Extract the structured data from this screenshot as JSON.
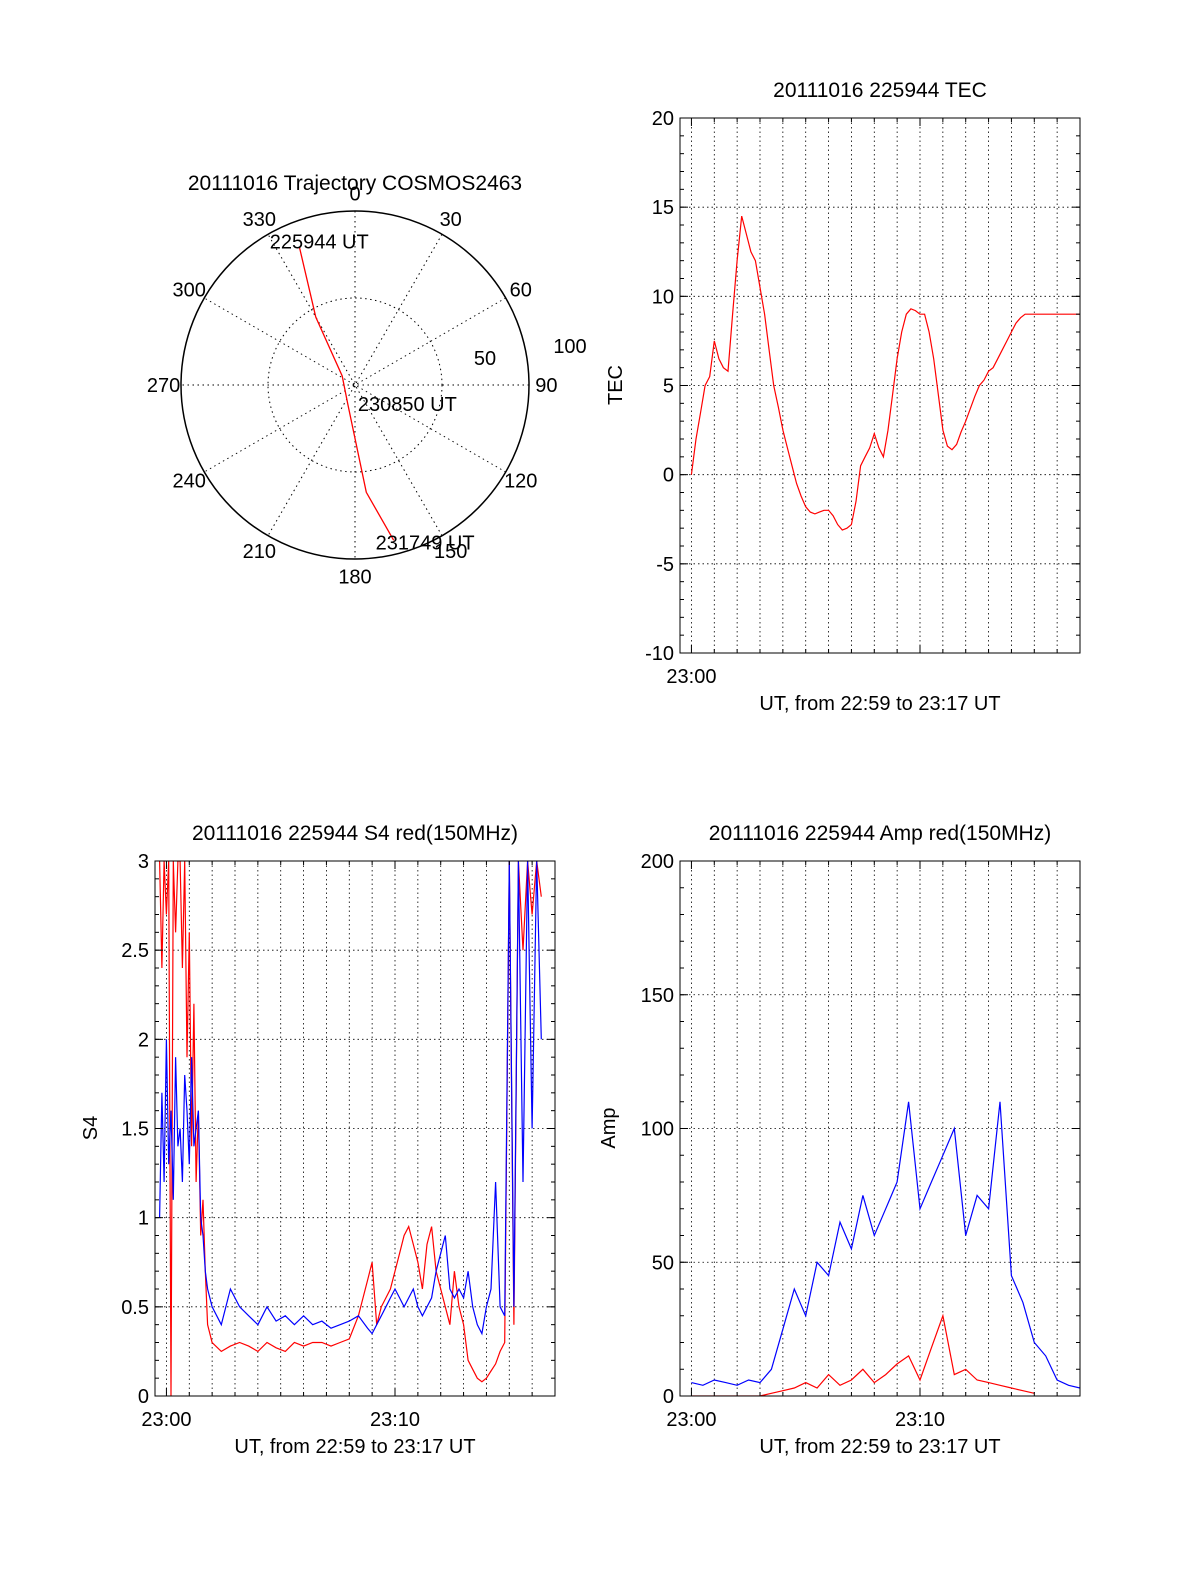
{
  "colors": {
    "red": "#ff0000",
    "blue": "#0000ff",
    "axis": "#000000",
    "grid": "#000000"
  },
  "chart_data": [
    {
      "type": "polar",
      "title": "20111016 Trajectory COSMOS2463",
      "angle_ticks": [
        "0",
        "30",
        "60",
        "90",
        "120",
        "150",
        "180",
        "210",
        "240",
        "270",
        "300",
        "330"
      ],
      "radial_ticks": [
        "50",
        "100"
      ],
      "radial_max": 100,
      "series": [
        {
          "color": "#ff0000",
          "points": [
            {
              "az": 338,
              "r": 85
            },
            {
              "az": 330,
              "r": 45
            },
            {
              "az": 305,
              "r": 9
            },
            {
              "az": 200,
              "r": 12
            },
            {
              "az": 174,
              "r": 62
            },
            {
              "az": 166,
              "r": 92
            }
          ]
        }
      ],
      "annotations": [
        {
          "text": "225944 UT",
          "az": 346,
          "r": 85
        },
        {
          "text": "230850 UT",
          "az": 110,
          "r": 32
        },
        {
          "text": "231749 UT",
          "az": 156,
          "r": 99
        }
      ]
    },
    {
      "type": "line",
      "title": "20111016 225944 TEC",
      "ylabel": "TEC",
      "xlabel": "UT, from 22:59 to 23:17 UT",
      "xlim": [
        -0.5,
        17.0
      ],
      "ylim": [
        -10,
        20
      ],
      "yticks": [
        -10,
        -5,
        0,
        5,
        10,
        15,
        20
      ],
      "xticks": [
        {
          "value": 0,
          "label": "23:00"
        }
      ],
      "grid": true,
      "series": [
        {
          "color": "#ff0000",
          "x": [
            0.0,
            0.2,
            0.4,
            0.6,
            0.8,
            1.0,
            1.2,
            1.4,
            1.6,
            1.8,
            2.0,
            2.2,
            2.4,
            2.6,
            2.8,
            3.0,
            3.2,
            3.4,
            3.6,
            3.8,
            4.0,
            4.2,
            4.4,
            4.6,
            4.8,
            5.0,
            5.2,
            5.4,
            5.6,
            5.8,
            6.0,
            6.2,
            6.4,
            6.6,
            6.8,
            7.0,
            7.2,
            7.4,
            7.6,
            7.8,
            8.0,
            8.2,
            8.4,
            8.6,
            8.8,
            9.0,
            9.2,
            9.4,
            9.6,
            9.8,
            10.0,
            10.2,
            10.4,
            10.6,
            10.8,
            11.0,
            11.2,
            11.4,
            11.6,
            11.8,
            12.0,
            12.2,
            12.4,
            12.6,
            12.8,
            13.0,
            13.2,
            13.4,
            13.6,
            13.8,
            14.0,
            14.2,
            14.4,
            14.6,
            14.8,
            15.0,
            15.2,
            15.4,
            15.6,
            15.8,
            16.0,
            16.2,
            16.4,
            16.6,
            16.8,
            17.0
          ],
          "y": [
            0.0,
            2.0,
            3.5,
            5.0,
            5.5,
            7.5,
            6.5,
            6.0,
            5.8,
            9.0,
            12.0,
            14.5,
            13.5,
            12.5,
            12.0,
            10.5,
            9.0,
            7.0,
            5.0,
            3.8,
            2.5,
            1.5,
            0.5,
            -0.5,
            -1.2,
            -1.8,
            -2.1,
            -2.2,
            -2.1,
            -2.0,
            -2.0,
            -2.3,
            -2.8,
            -3.1,
            -3.0,
            -2.8,
            -1.5,
            0.5,
            1.0,
            1.5,
            2.3,
            1.5,
            1.0,
            2.5,
            4.5,
            6.5,
            8.0,
            9.0,
            9.3,
            9.2,
            9.0,
            9.0,
            8.0,
            6.5,
            4.5,
            2.5,
            1.6,
            1.4,
            1.7,
            2.4,
            3.0,
            3.7,
            4.4,
            5.0,
            5.3,
            5.8,
            6.0,
            6.5,
            7.0,
            7.5,
            8.0,
            8.5,
            8.8,
            9.0,
            9.0,
            9.0,
            9.0,
            9.0,
            9.0,
            9.0,
            9.0,
            9.0,
            9.0,
            9.0,
            9.0,
            9.0
          ]
        }
      ]
    },
    {
      "type": "line",
      "title": "20111016 225944 S4 red(150MHz)",
      "ylabel": "S4",
      "xlabel": "UT, from 22:59 to 23:17 UT",
      "xlim": [
        -0.5,
        17.0
      ],
      "ylim": [
        0,
        3
      ],
      "yticks": [
        0,
        0.5,
        1,
        1.5,
        2,
        2.5,
        3
      ],
      "xticks": [
        {
          "value": 0,
          "label": "23:00"
        },
        {
          "value": 10,
          "label": "23:10"
        }
      ],
      "grid": true,
      "series": [
        {
          "color": "#ff0000",
          "x": [
            -0.3,
            -0.2,
            -0.1,
            0.0,
            0.1,
            0.2,
            0.3,
            0.4,
            0.5,
            0.6,
            0.7,
            0.8,
            0.9,
            1.0,
            1.1,
            1.2,
            1.3,
            1.4,
            1.5,
            1.6,
            1.7,
            1.8,
            2.0,
            2.4,
            2.8,
            3.2,
            3.6,
            4.0,
            4.4,
            4.8,
            5.2,
            5.6,
            6.0,
            6.4,
            6.8,
            7.2,
            7.6,
            8.0,
            8.4,
            8.8,
            9.0,
            9.2,
            9.4,
            9.6,
            9.8,
            10.0,
            10.2,
            10.4,
            10.6,
            10.8,
            11.0,
            11.2,
            11.4,
            11.6,
            11.8,
            12.0,
            12.2,
            12.4,
            12.6,
            12.8,
            13.0,
            13.2,
            13.4,
            13.6,
            13.8,
            14.0,
            14.2,
            14.4,
            14.6,
            14.8,
            15.0,
            15.2,
            15.4,
            15.6,
            15.8,
            16.0,
            16.2,
            16.4
          ],
          "y": [
            3.0,
            2.4,
            3.0,
            2.7,
            3.0,
            0.0,
            3.0,
            2.6,
            3.0,
            3.0,
            2.4,
            3.0,
            1.9,
            2.6,
            1.4,
            2.2,
            1.2,
            1.6,
            0.9,
            1.1,
            0.7,
            0.4,
            0.3,
            0.25,
            0.28,
            0.3,
            0.28,
            0.25,
            0.3,
            0.27,
            0.25,
            0.3,
            0.28,
            0.3,
            0.3,
            0.28,
            0.3,
            0.32,
            0.45,
            0.65,
            0.75,
            0.4,
            0.5,
            0.55,
            0.6,
            0.7,
            0.8,
            0.9,
            0.95,
            0.85,
            0.75,
            0.6,
            0.85,
            0.95,
            0.7,
            0.6,
            0.5,
            0.4,
            0.7,
            0.5,
            0.4,
            0.2,
            0.15,
            0.1,
            0.08,
            0.1,
            0.14,
            0.18,
            0.25,
            0.3,
            3.0,
            0.4,
            3.0,
            2.5,
            3.0,
            2.7,
            3.0,
            2.8
          ]
        },
        {
          "color": "#0000ff",
          "x": [
            -0.3,
            -0.2,
            -0.1,
            0.0,
            0.1,
            0.2,
            0.3,
            0.4,
            0.5,
            0.6,
            0.7,
            0.8,
            0.9,
            1.0,
            1.1,
            1.2,
            1.3,
            1.4,
            1.5,
            1.6,
            1.7,
            1.8,
            2.0,
            2.4,
            2.8,
            3.2,
            3.6,
            4.0,
            4.4,
            4.8,
            5.2,
            5.6,
            6.0,
            6.4,
            6.8,
            7.2,
            7.6,
            8.0,
            8.4,
            8.8,
            9.0,
            9.2,
            9.4,
            9.6,
            9.8,
            10.0,
            10.2,
            10.4,
            10.6,
            10.8,
            11.0,
            11.2,
            11.4,
            11.6,
            11.8,
            12.0,
            12.2,
            12.4,
            12.6,
            12.8,
            13.0,
            13.2,
            13.4,
            13.6,
            13.8,
            14.0,
            14.2,
            14.4,
            14.6,
            14.8,
            15.0,
            15.2,
            15.4,
            15.6,
            15.8,
            16.0,
            16.2,
            16.4
          ],
          "y": [
            1.0,
            1.7,
            1.2,
            2.0,
            1.3,
            1.6,
            1.1,
            1.9,
            1.4,
            1.5,
            1.2,
            1.8,
            1.6,
            1.3,
            1.9,
            1.4,
            1.5,
            1.6,
            1.0,
            0.9,
            0.7,
            0.6,
            0.5,
            0.4,
            0.6,
            0.5,
            0.45,
            0.4,
            0.5,
            0.42,
            0.45,
            0.4,
            0.45,
            0.4,
            0.42,
            0.38,
            0.4,
            0.42,
            0.45,
            0.38,
            0.35,
            0.4,
            0.45,
            0.5,
            0.55,
            0.6,
            0.55,
            0.5,
            0.55,
            0.6,
            0.5,
            0.45,
            0.5,
            0.55,
            0.7,
            0.8,
            0.9,
            0.6,
            0.55,
            0.6,
            0.55,
            0.7,
            0.5,
            0.4,
            0.35,
            0.5,
            0.6,
            1.2,
            0.5,
            0.45,
            3.0,
            0.5,
            3.0,
            1.2,
            3.0,
            1.5,
            3.0,
            2.0
          ]
        }
      ]
    },
    {
      "type": "line",
      "title": "20111016 225944 Amp red(150MHz)",
      "ylabel": "Amp",
      "xlabel": "UT, from 22:59 to 23:17 UT",
      "xlim": [
        -0.5,
        17.0
      ],
      "ylim": [
        0,
        200
      ],
      "yticks": [
        0,
        50,
        100,
        150,
        200
      ],
      "xticks": [
        {
          "value": 0,
          "label": "23:00"
        },
        {
          "value": 10,
          "label": "23:10"
        }
      ],
      "grid": true,
      "series": [
        {
          "color": "#0000ff",
          "x": [
            0.0,
            0.5,
            1.0,
            1.5,
            2.0,
            2.5,
            3.0,
            3.5,
            4.0,
            4.5,
            5.0,
            5.5,
            6.0,
            6.5,
            7.0,
            7.5,
            8.0,
            8.5,
            9.0,
            9.5,
            10.0,
            10.5,
            11.0,
            11.5,
            12.0,
            12.5,
            13.0,
            13.5,
            14.0,
            14.5,
            15.0,
            15.5,
            16.0,
            16.5,
            17.0
          ],
          "y": [
            5,
            4,
            6,
            5,
            4,
            6,
            5,
            10,
            25,
            40,
            30,
            50,
            45,
            65,
            55,
            75,
            60,
            70,
            80,
            110,
            70,
            80,
            90,
            100,
            60,
            75,
            70,
            110,
            45,
            35,
            20,
            15,
            6,
            4,
            3
          ]
        },
        {
          "color": "#ff0000",
          "x": [
            0.0,
            1.0,
            2.0,
            3.0,
            3.5,
            4.0,
            4.5,
            5.0,
            5.5,
            6.0,
            6.5,
            7.0,
            7.5,
            8.0,
            8.5,
            9.0,
            9.5,
            10.0,
            10.5,
            11.0,
            11.5,
            12.0,
            12.5,
            13.0,
            13.5,
            14.0,
            14.5,
            15.0
          ],
          "y": [
            0,
            0,
            0,
            0,
            1,
            2,
            3,
            5,
            3,
            8,
            4,
            6,
            10,
            5,
            8,
            12,
            15,
            6,
            18,
            30,
            8,
            10,
            6,
            5,
            4,
            3,
            2,
            1
          ]
        }
      ]
    }
  ]
}
